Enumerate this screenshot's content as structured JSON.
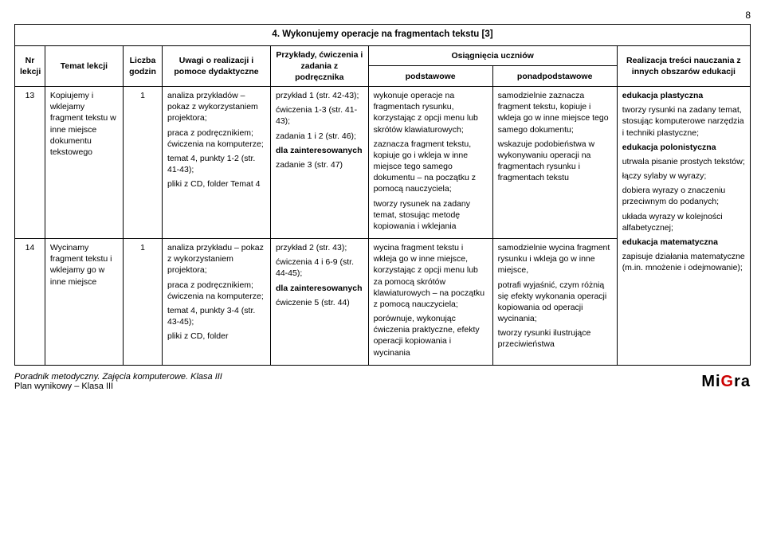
{
  "page_number": "8",
  "section_title": "4. Wykonujemy operacje na fragmentach tekstu [3]",
  "headers": {
    "nr": "Nr lekcji",
    "temat": "Temat lekcji",
    "liczba": "Liczba godzin",
    "uwagi": "Uwagi o realizacji i pomoce dydaktyczne",
    "przyklady": "Przykłady, ćwiczenia i zadania z podręcznika",
    "osiag": "Osiągnięcia uczniów",
    "podst": "podstawowe",
    "ponad": "ponadpodstawowe",
    "real": "Realizacja treści nauczania z innych obszarów edukacji"
  },
  "row1": {
    "nr": "13",
    "temat": "Kopiujemy i wklejamy fragment tekstu w inne miejsce dokumentu tekstowego",
    "liczba": "1",
    "uwagi_p1": "analiza przykładów – pokaz z wykorzystaniem projektora;",
    "uwagi_p2": "praca z podręcznikiem; ćwiczenia na komputerze;",
    "uwagi_p3": "temat 4, punkty 1-2 (str. 41-43);",
    "uwagi_p4": "pliki z CD, folder Temat 4",
    "przyk_p1": "przykład 1 (str. 42-43);",
    "przyk_p2": "ćwiczenia 1-3 (str. 41-43);",
    "przyk_p3": "zadania 1 i 2 (str. 46);",
    "przyk_p4": "dla zainteresowanych",
    "przyk_p5": "zadanie 3 (str. 47)",
    "podst_p1": "wykonuje operacje na fragmentach rysunku, korzystając z opcji menu lub skrótów klawiaturowych;",
    "podst_p2": "zaznacza fragment tekstu, kopiuje go i wkleja w inne miejsce tego samego dokumentu – na początku z pomocą nauczyciela;",
    "podst_p3": "tworzy rysunek na zadany temat, stosując metodę kopiowania i wklejania",
    "ponad_p1": "samodzielnie zaznacza fragment tekstu, kopiuje i wkleja go w inne miejsce tego samego dokumentu;",
    "ponad_p2": "wskazuje podobieństwa w wykonywaniu operacji na fragmentach rysunku i fragmentach tekstu"
  },
  "row2": {
    "nr": "14",
    "temat": "Wycinamy fragment tekstu i wklejamy go w inne miejsce",
    "liczba": "1",
    "uwagi_p1": "analiza przykładu – pokaz z wykorzystaniem projektora;",
    "uwagi_p2": "praca z podręcznikiem; ćwiczenia na komputerze;",
    "uwagi_p3": "temat 4, punkty 3-4 (str. 43-45);",
    "uwagi_p4": "pliki z CD, folder",
    "przyk_p1": "przykład 2 (str. 43);",
    "przyk_p2": "ćwiczenia 4 i 6-9 (str. 44-45);",
    "przyk_p3": "dla zainteresowanych",
    "przyk_p4": "ćwiczenie 5 (str. 44)",
    "podst_p1": "wycina fragment tekstu i wkleja go w inne miejsce, korzystając z opcji menu lub za pomocą skrótów klawiaturowych – na początku z pomocą nauczyciela;",
    "podst_p2": "porównuje, wykonując ćwiczenia praktyczne, efekty operacji kopiowania i wycinania",
    "ponad_p1": "samodzielnie wycina fragment rysunku i wkleja go w inne miejsce,",
    "ponad_p2": "potrafi wyjaśnić, czym różnią się efekty wykonania operacji kopiowania od operacji wycinania;",
    "ponad_p3": "tworzy rysunki ilustrujące przeciwieństwa"
  },
  "real": {
    "p1": "edukacja plastyczna",
    "p2": "tworzy rysunki na zadany temat, stosując komputerowe narzędzia i techniki plastyczne;",
    "p3": "edukacja polonistyczna",
    "p4": "utrwala pisanie prostych tekstów;",
    "p5": "łączy sylaby w wyrazy;",
    "p6": "dobiera wyrazy o znaczeniu przeciwnym do podanych;",
    "p7": "układa wyrazy w kolejności alfabetycznej;",
    "p8": "edukacja matematyczna",
    "p9": "zapisuje działania matematyczne (m.in. mnożenie i odejmowanie);"
  },
  "footer": {
    "line1": "Poradnik metodyczny. Zajęcia komputerowe. Klasa III",
    "line2": "Plan wynikowy – Klasa III",
    "logo_mi": "Mi",
    "logo_g": "G",
    "logo_ra": "ra"
  }
}
